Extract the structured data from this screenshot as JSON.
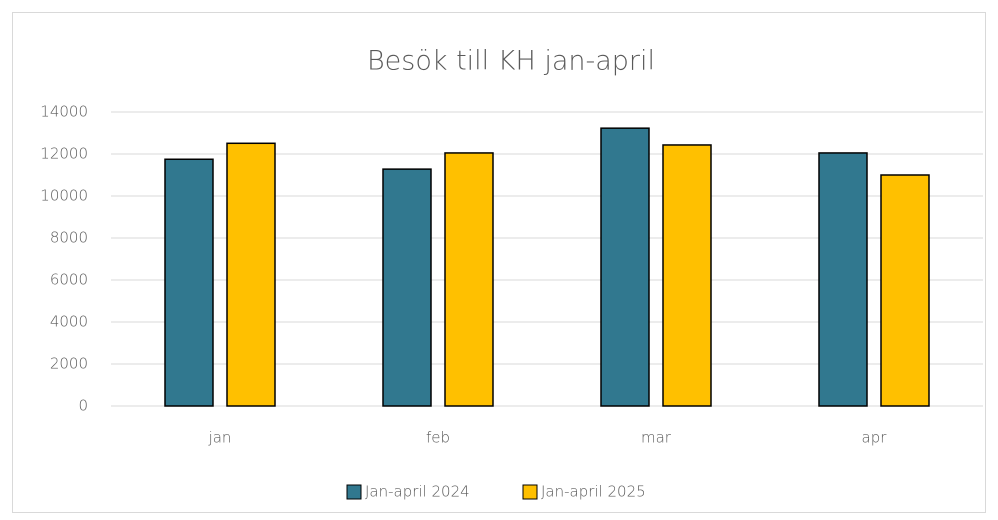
{
  "chart_data": {
    "type": "bar",
    "title": "Besök till KH jan-april",
    "categories": [
      "jan",
      "feb",
      "mar",
      "apr"
    ],
    "series": [
      {
        "name": "Jan-april 2024",
        "color": "#31788f",
        "values": [
          11750,
          11280,
          13230,
          12050
        ]
      },
      {
        "name": "Jan-april 2025",
        "color": "#ffc000",
        "values": [
          12510,
          12050,
          12430,
          11000
        ]
      }
    ],
    "ylim": [
      0,
      14000
    ],
    "yticks": [
      0,
      2000,
      4000,
      6000,
      8000,
      10000,
      12000,
      14000
    ],
    "grid": true,
    "legend": "bottom"
  }
}
